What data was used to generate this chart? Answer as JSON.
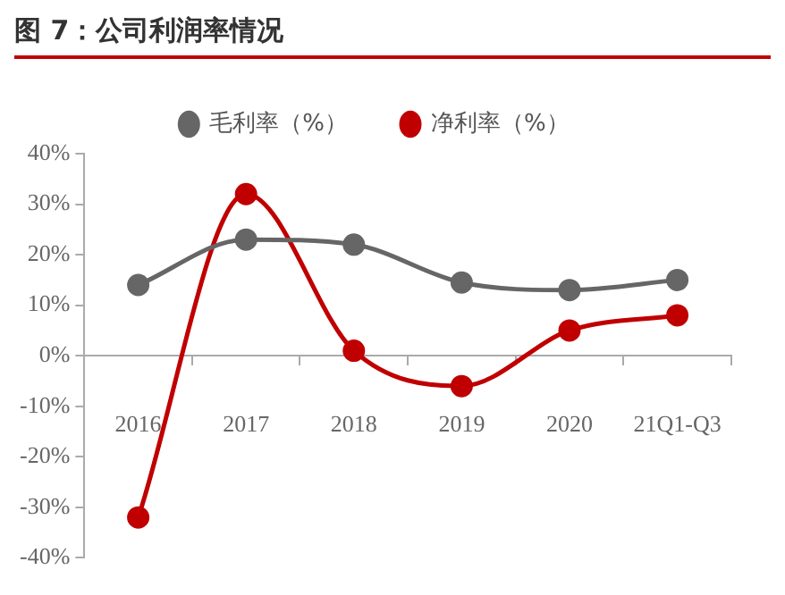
{
  "chart_data": {
    "type": "line",
    "title": "图 7：公司利润率情况",
    "categories": [
      "2016",
      "2017",
      "2018",
      "2019",
      "2020",
      "21Q1-Q3"
    ],
    "series": [
      {
        "name": "毛利率（%）",
        "color": "#666666",
        "values": [
          14,
          23,
          22,
          14.5,
          13,
          15
        ]
      },
      {
        "name": "净利率（%）",
        "color": "#c00000",
        "values": [
          -32,
          32,
          1,
          -6,
          5,
          8
        ]
      }
    ],
    "ylim": [
      -40,
      40
    ],
    "yticks": [
      {
        "value": -40,
        "label": "-40%"
      },
      {
        "value": -30,
        "label": "-30%"
      },
      {
        "value": -20,
        "label": "-20%"
      },
      {
        "value": -10,
        "label": "-10%"
      },
      {
        "value": 0,
        "label": "0%"
      },
      {
        "value": 10,
        "label": "10%"
      },
      {
        "value": 20,
        "label": "20%"
      },
      {
        "value": 30,
        "label": "30%"
      },
      {
        "value": 40,
        "label": "40%"
      }
    ],
    "grid": false,
    "legend": "top",
    "marker": "circle",
    "line_style": "solid"
  }
}
